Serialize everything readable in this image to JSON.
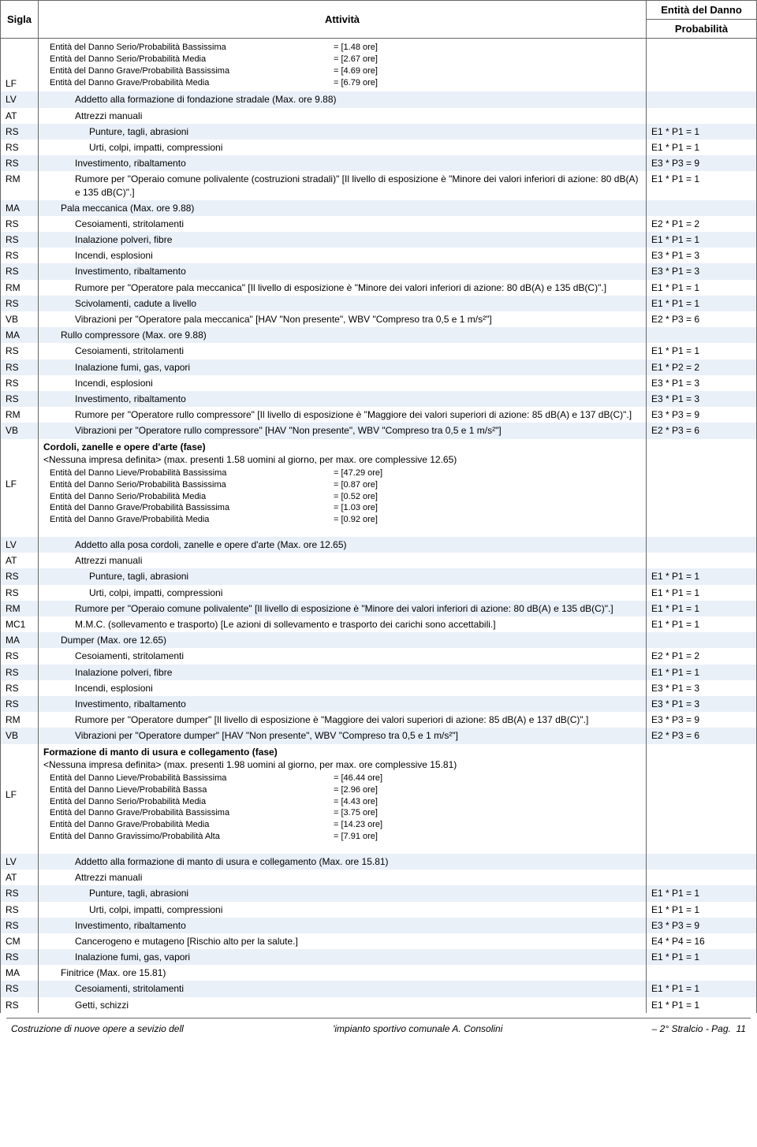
{
  "header": {
    "sigla": "Sigla",
    "attivita": "Attività",
    "entita1": "Entità del Danno",
    "entita2": "Probabilità"
  },
  "lf1": {
    "lines": [
      {
        "label": "Entità del Danno Serio/Probabilità Bassissima",
        "val": "= [1.48 ore]"
      },
      {
        "label": "Entità del Danno Serio/Probabilità Media",
        "val": "= [2.67 ore]"
      },
      {
        "label": "Entità del Danno Grave/Probabilità Bassissima",
        "val": "= [4.69 ore]"
      },
      {
        "label": "Entità del Danno Grave/Probabilità Media",
        "val": "= [6.79 ore]"
      }
    ]
  },
  "lf2": {
    "title": "Cordoli, zanelle e opere d'arte (fase)",
    "subtitle": "<Nessuna impresa definita>  (max. presenti 1.58 uomini al giorno, per max. ore complessive 12.65)",
    "lines": [
      {
        "label": "Entità del Danno Lieve/Probabilità Bassissima",
        "val": "= [47.29 ore]"
      },
      {
        "label": "Entità del Danno Serio/Probabilità Bassissima",
        "val": "= [0.87 ore]"
      },
      {
        "label": "Entità del Danno Serio/Probabilità Media",
        "val": "= [0.52 ore]"
      },
      {
        "label": "Entità del Danno Grave/Probabilità Bassissima",
        "val": "= [1.03 ore]"
      },
      {
        "label": "Entità del Danno Grave/Probabilità Media",
        "val": "= [0.92 ore]"
      }
    ]
  },
  "lf3": {
    "title": "Formazione di manto di usura e collegamento (fase)",
    "subtitle": "<Nessuna impresa definita>  (max. presenti 1.98 uomini al giorno, per max. ore complessive 15.81)",
    "lines": [
      {
        "label": "Entità del Danno Lieve/Probabilità Bassissima",
        "val": "= [46.44 ore]"
      },
      {
        "label": "Entità del Danno Lieve/Probabilità Bassa",
        "val": "= [2.96 ore]"
      },
      {
        "label": "Entità del Danno Serio/Probabilità Media",
        "val": "= [4.43 ore]"
      },
      {
        "label": "Entità del Danno Grave/Probabilità Bassissima",
        "val": "= [3.75 ore]"
      },
      {
        "label": "Entità del Danno Grave/Probabilità Media",
        "val": "= [14.23 ore]"
      },
      {
        "label": "Entità del Danno Gravissimo/Probabilità Alta",
        "val": "= [7.91 ore]"
      }
    ]
  },
  "rows": [
    {
      "shade": true,
      "sigla": "LV",
      "ind": 2,
      "text": "Addetto alla formazione di fondazione stradale  (Max. ore 9.88)",
      "val": ""
    },
    {
      "shade": false,
      "sigla": "AT",
      "ind": 2,
      "text": "Attrezzi manuali",
      "val": ""
    },
    {
      "shade": true,
      "sigla": "RS",
      "ind": 3,
      "text": "Punture, tagli, abrasioni",
      "val": "E1 * P1 = 1"
    },
    {
      "shade": false,
      "sigla": "RS",
      "ind": 3,
      "text": "Urti, colpi, impatti, compressioni",
      "val": "E1 * P1 = 1"
    },
    {
      "shade": true,
      "sigla": "RS",
      "ind": 2,
      "text": "Investimento, ribaltamento",
      "val": "E3 * P3 = 9"
    },
    {
      "shade": false,
      "sigla": "RM",
      "ind": 2,
      "text": "Rumore per \"Operaio comune polivalente (costruzioni stradali)\" [Il livello di esposizione è \"Minore dei valori inferiori di azione: 80 dB(A) e 135 dB(C)\".]",
      "val": "E1 * P1 = 1"
    },
    {
      "shade": true,
      "sigla": "MA",
      "ind": 1,
      "text": "Pala meccanica  (Max. ore 9.88)",
      "val": ""
    },
    {
      "shade": false,
      "sigla": "RS",
      "ind": 2,
      "text": "Cesoiamenti, stritolamenti",
      "val": "E2 * P1 = 2"
    },
    {
      "shade": true,
      "sigla": "RS",
      "ind": 2,
      "text": "Inalazione polveri, fibre",
      "val": "E1 * P1 = 1"
    },
    {
      "shade": false,
      "sigla": "RS",
      "ind": 2,
      "text": "Incendi, esplosioni",
      "val": "E3 * P1 = 3"
    },
    {
      "shade": true,
      "sigla": "RS",
      "ind": 2,
      "text": "Investimento, ribaltamento",
      "val": "E3 * P1 = 3"
    },
    {
      "shade": false,
      "sigla": "RM",
      "ind": 2,
      "text": "Rumore per \"Operatore pala meccanica\" [Il livello di esposizione è \"Minore dei valori inferiori di azione: 80 dB(A) e 135 dB(C)\".]",
      "val": "E1 * P1 = 1"
    },
    {
      "shade": true,
      "sigla": "RS",
      "ind": 2,
      "text": "Scivolamenti, cadute a livello",
      "val": "E1 * P1 = 1"
    },
    {
      "shade": false,
      "sigla": "VB",
      "ind": 2,
      "text": "Vibrazioni per \"Operatore pala meccanica\" [HAV \"Non presente\", WBV \"Compreso tra 0,5 e 1 m/s²\"]",
      "val": "E2 * P3 = 6"
    },
    {
      "shade": true,
      "sigla": "MA",
      "ind": 1,
      "text": "Rullo compressore  (Max. ore 9.88)",
      "val": ""
    },
    {
      "shade": false,
      "sigla": "RS",
      "ind": 2,
      "text": "Cesoiamenti, stritolamenti",
      "val": "E1 * P1 = 1"
    },
    {
      "shade": true,
      "sigla": "RS",
      "ind": 2,
      "text": "Inalazione fumi, gas, vapori",
      "val": "E1 * P2 = 2"
    },
    {
      "shade": false,
      "sigla": "RS",
      "ind": 2,
      "text": "Incendi, esplosioni",
      "val": "E3 * P1 = 3"
    },
    {
      "shade": true,
      "sigla": "RS",
      "ind": 2,
      "text": "Investimento, ribaltamento",
      "val": "E3 * P1 = 3"
    },
    {
      "shade": false,
      "sigla": "RM",
      "ind": 2,
      "text": "Rumore per \"Operatore rullo compressore\" [Il livello di esposizione è \"Maggiore dei valori superiori di azione: 85 dB(A) e 137 dB(C)\".]",
      "val": "E3 * P3 = 9"
    },
    {
      "shade": true,
      "sigla": "VB",
      "ind": 2,
      "text": "Vibrazioni per \"Operatore rullo compressore\" [HAV \"Non presente\", WBV \"Compreso tra 0,5 e 1 m/s²\"]",
      "val": "E2 * P3 = 6"
    }
  ],
  "rows2": [
    {
      "shade": true,
      "sigla": "LV",
      "ind": 2,
      "text": "Addetto alla posa cordoli, zanelle e opere d'arte  (Max. ore 12.65)",
      "val": ""
    },
    {
      "shade": false,
      "sigla": "AT",
      "ind": 2,
      "text": "Attrezzi manuali",
      "val": ""
    },
    {
      "shade": true,
      "sigla": "RS",
      "ind": 3,
      "text": "Punture, tagli, abrasioni",
      "val": "E1 * P1 = 1"
    },
    {
      "shade": false,
      "sigla": "RS",
      "ind": 3,
      "text": "Urti, colpi, impatti, compressioni",
      "val": "E1 * P1 = 1"
    },
    {
      "shade": true,
      "sigla": "RM",
      "ind": 2,
      "text": "Rumore per \"Operaio comune polivalente\" [Il livello di esposizione è \"Minore dei valori inferiori di azione: 80 dB(A) e 135 dB(C)\".]",
      "val": "E1 * P1 = 1"
    },
    {
      "shade": false,
      "sigla": "MC1",
      "ind": 2,
      "text": "M.M.C. (sollevamento e trasporto) [Le azioni di sollevamento e trasporto dei carichi sono accettabili.]",
      "val": "E1 * P1 = 1"
    },
    {
      "shade": true,
      "sigla": "MA",
      "ind": 1,
      "text": "Dumper  (Max. ore 12.65)",
      "val": ""
    },
    {
      "shade": false,
      "sigla": "RS",
      "ind": 2,
      "text": "Cesoiamenti, stritolamenti",
      "val": "E2 * P1 = 2"
    },
    {
      "shade": true,
      "sigla": "RS",
      "ind": 2,
      "text": "Inalazione polveri, fibre",
      "val": "E1 * P1 = 1"
    },
    {
      "shade": false,
      "sigla": "RS",
      "ind": 2,
      "text": "Incendi, esplosioni",
      "val": "E3 * P1 = 3"
    },
    {
      "shade": true,
      "sigla": "RS",
      "ind": 2,
      "text": "Investimento, ribaltamento",
      "val": "E3 * P1 = 3"
    },
    {
      "shade": false,
      "sigla": "RM",
      "ind": 2,
      "text": "Rumore per \"Operatore dumper\" [Il livello di esposizione è \"Maggiore dei valori superiori di azione: 85 dB(A) e 137 dB(C)\".]",
      "val": "E3 * P3 = 9"
    },
    {
      "shade": true,
      "sigla": "VB",
      "ind": 2,
      "text": "Vibrazioni per \"Operatore dumper\" [HAV \"Non presente\", WBV \"Compreso tra 0,5 e 1 m/s²\"]",
      "val": "E2 * P3 = 6"
    }
  ],
  "rows3": [
    {
      "shade": true,
      "sigla": "LV",
      "ind": 2,
      "text": "Addetto alla formazione di manto di usura e collegamento  (Max. ore 15.81)",
      "val": ""
    },
    {
      "shade": false,
      "sigla": "AT",
      "ind": 2,
      "text": "Attrezzi manuali",
      "val": ""
    },
    {
      "shade": true,
      "sigla": "RS",
      "ind": 3,
      "text": "Punture, tagli, abrasioni",
      "val": "E1 * P1 = 1"
    },
    {
      "shade": false,
      "sigla": "RS",
      "ind": 3,
      "text": "Urti, colpi, impatti, compressioni",
      "val": "E1 * P1 = 1"
    },
    {
      "shade": true,
      "sigla": "RS",
      "ind": 2,
      "text": "Investimento, ribaltamento",
      "val": "E3 * P3 = 9"
    },
    {
      "shade": false,
      "sigla": "CM",
      "ind": 2,
      "text": "Cancerogeno e mutageno [Rischio alto per la salute.]",
      "val": "E4 * P4 = 16"
    },
    {
      "shade": true,
      "sigla": "RS",
      "ind": 2,
      "text": "Inalazione fumi, gas, vapori",
      "val": "E1 * P1 = 1"
    },
    {
      "shade": false,
      "sigla": "MA",
      "ind": 1,
      "text": "Finitrice  (Max. ore 15.81)",
      "val": ""
    },
    {
      "shade": true,
      "sigla": "RS",
      "ind": 2,
      "text": "Cesoiamenti, stritolamenti",
      "val": "E1 * P1 = 1"
    },
    {
      "shade": false,
      "sigla": "RS",
      "ind": 2,
      "text": "Getti, schizzi",
      "val": "E1 * P1 = 1"
    }
  ],
  "footer": {
    "left": "Costruzione di nuove opere a sevizio dell",
    "mid": "'impianto sportivo comunale A. Consolini",
    "right": "– 2° Stralcio - Pag.",
    "page": "11"
  },
  "siglaLF": "LF"
}
